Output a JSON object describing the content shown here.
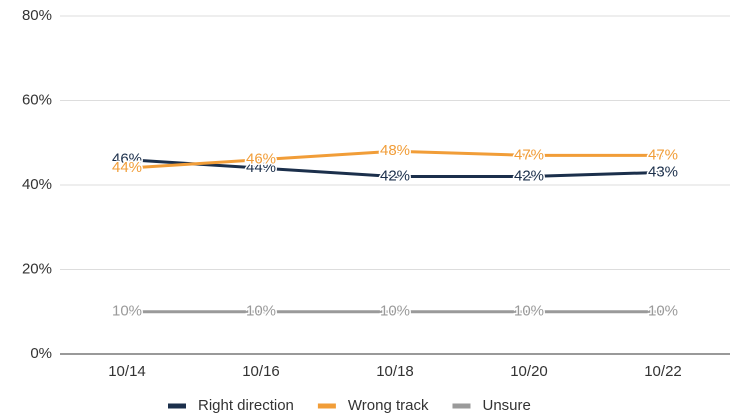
{
  "chart_data": {
    "type": "line",
    "categories": [
      "10/14",
      "10/16",
      "10/18",
      "10/20",
      "10/22"
    ],
    "series": [
      {
        "name": "Right direction",
        "color": "#1b2f4b",
        "values": [
          46,
          44,
          42,
          42,
          43
        ],
        "value_labels": [
          "46%",
          "44%",
          "42%",
          "42%",
          "43%"
        ]
      },
      {
        "name": "Wrong track",
        "color": "#f19d38",
        "values": [
          44,
          46,
          48,
          47,
          47
        ],
        "value_labels": [
          "44%",
          "46%",
          "48%",
          "47%",
          "47%"
        ]
      },
      {
        "name": "Unsure",
        "color": "#9a9a9a",
        "values": [
          10,
          10,
          10,
          10,
          10
        ],
        "value_labels": [
          "10%",
          "10%",
          "10%",
          "10%",
          "10%"
        ]
      }
    ],
    "ylim": [
      0,
      80
    ],
    "yticks": [
      {
        "value": 0,
        "label": "0%"
      },
      {
        "value": 20,
        "label": "20%"
      },
      {
        "value": 40,
        "label": "40%"
      },
      {
        "value": 60,
        "label": "60%"
      },
      {
        "value": 80,
        "label": "80%"
      }
    ],
    "grid": true,
    "legend": "bottom"
  }
}
